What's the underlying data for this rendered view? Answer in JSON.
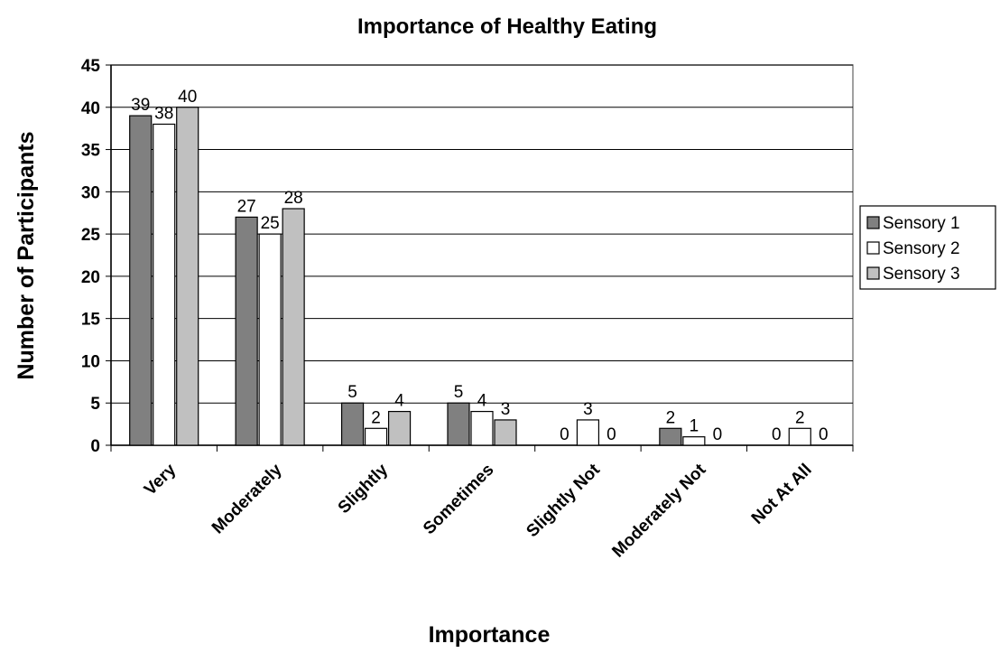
{
  "chart_data": {
    "type": "bar",
    "title": "Importance of Healthy Eating",
    "xlabel": "Importance",
    "ylabel": "Number of Participants",
    "categories": [
      "Very",
      "Moderately",
      "Slightly",
      "Sometimes",
      "Slightly Not",
      "Moderately Not",
      "Not At All"
    ],
    "series": [
      {
        "name": "Sensory 1",
        "values": [
          39,
          27,
          5,
          5,
          0,
          2,
          0
        ],
        "color": "#808080"
      },
      {
        "name": "Sensory 2",
        "values": [
          38,
          25,
          2,
          4,
          3,
          1,
          2
        ],
        "color": "#ffffff"
      },
      {
        "name": "Sensory 3",
        "values": [
          40,
          28,
          4,
          3,
          0,
          0,
          0
        ],
        "color": "#c0c0c0"
      }
    ],
    "ylim": [
      0,
      45
    ],
    "yticks": [
      0,
      5,
      10,
      15,
      20,
      25,
      30,
      35,
      40,
      45
    ],
    "grid": true,
    "legend": "right"
  }
}
